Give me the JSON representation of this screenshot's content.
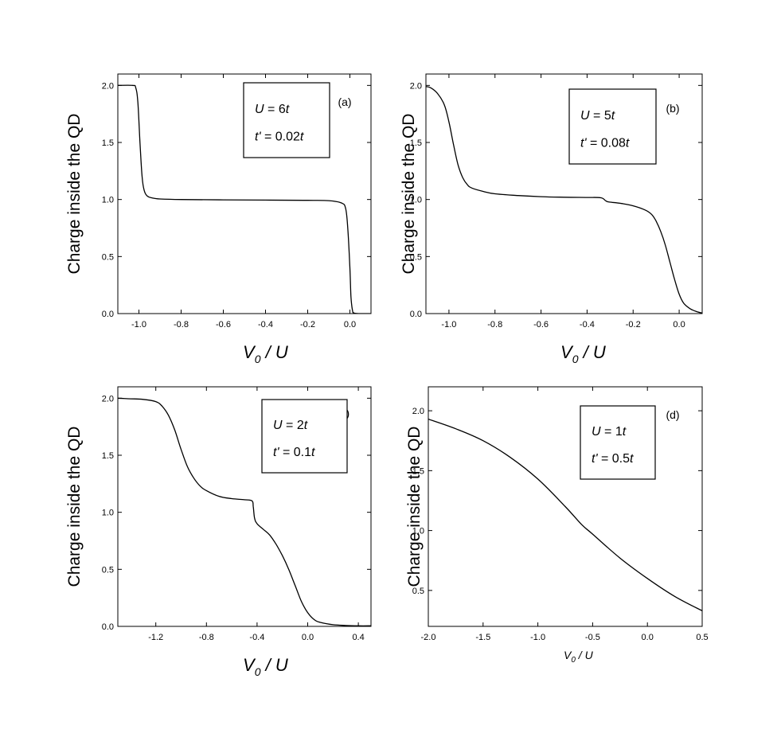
{
  "chart_data": [
    {
      "type": "line",
      "panel_label": "(a)",
      "ylabel": "Charge inside the QD",
      "xlabel": "V0 / U",
      "xlabel_sub": "0",
      "xlim": [
        -1.1,
        0.1
      ],
      "ylim": [
        0.0,
        2.1
      ],
      "xticks": [
        "-1.0",
        "-0.8",
        "-0.6",
        "-0.4",
        "-0.2",
        "0.0"
      ],
      "yticks": [
        "0.0",
        "0.5",
        "1.0",
        "1.5",
        "2.0"
      ],
      "params": [
        "U = 6t",
        "t' = 0.02t"
      ],
      "series": [
        {
          "x": [
            -1.1,
            -1.03,
            -1.015,
            -1.005,
            -0.995,
            -0.985,
            -0.975,
            -0.96,
            -0.94,
            -0.9,
            -0.8,
            -0.6,
            -0.4,
            -0.2,
            -0.1,
            -0.04,
            -0.02,
            -0.01,
            0.0,
            0.005,
            0.012,
            0.02,
            0.05,
            0.1
          ],
          "y": [
            2.0,
            2.0,
            1.98,
            1.85,
            1.5,
            1.2,
            1.08,
            1.03,
            1.015,
            1.005,
            1.0,
            0.997,
            0.995,
            0.993,
            0.99,
            0.97,
            0.92,
            0.75,
            0.4,
            0.15,
            0.03,
            0.005,
            0.0,
            0.0
          ]
        }
      ]
    },
    {
      "type": "line",
      "panel_label": "(b)",
      "ylabel": "Charge inside the QD",
      "xlabel": "V0 / U",
      "xlabel_sub": "0",
      "xlim": [
        -1.1,
        0.1
      ],
      "ylim": [
        0.0,
        2.1
      ],
      "xticks": [
        "-1.0",
        "-0.8",
        "-0.6",
        "-0.4",
        "-0.2",
        "0.0"
      ],
      "yticks": [
        "0.0",
        "0.5",
        "1.0",
        "1.5",
        "2.0"
      ],
      "params": [
        "U = 5t",
        "t' = 0.08t"
      ],
      "series": [
        {
          "x": [
            -1.1,
            -1.08,
            -1.05,
            -1.02,
            -1.0,
            -0.98,
            -0.96,
            -0.94,
            -0.92,
            -0.9,
            -0.85,
            -0.8,
            -0.7,
            -0.6,
            -0.5,
            -0.4,
            -0.34,
            -0.32,
            -0.31,
            -0.29,
            -0.25,
            -0.2,
            -0.15,
            -0.12,
            -0.1,
            -0.08,
            -0.06,
            -0.04,
            -0.02,
            0.0,
            0.02,
            0.05,
            0.08,
            0.1
          ],
          "y": [
            1.99,
            1.98,
            1.93,
            1.83,
            1.68,
            1.48,
            1.3,
            1.19,
            1.13,
            1.1,
            1.07,
            1.05,
            1.035,
            1.025,
            1.02,
            1.018,
            1.015,
            0.99,
            0.98,
            0.975,
            0.965,
            0.945,
            0.91,
            0.87,
            0.81,
            0.72,
            0.6,
            0.45,
            0.3,
            0.17,
            0.09,
            0.04,
            0.015,
            0.005
          ]
        }
      ]
    },
    {
      "type": "line",
      "panel_label": "(c)",
      "ylabel": "Charge inside the QD",
      "xlabel": "V0 / U",
      "xlabel_sub": "0",
      "xlim": [
        -1.5,
        0.5
      ],
      "ylim": [
        0.0,
        2.1
      ],
      "xticks": [
        "-1.2",
        "-0.8",
        "-0.4",
        "0.0",
        "0.4"
      ],
      "xtick_values": [
        -1.2,
        -0.8,
        -0.4,
        0.0,
        0.4
      ],
      "yticks": [
        "0.0",
        "0.5",
        "1.0",
        "1.5",
        "2.0"
      ],
      "params": [
        "U = 2t",
        "t' = 0.1t"
      ],
      "series": [
        {
          "x": [
            -1.5,
            -1.4,
            -1.3,
            -1.2,
            -1.15,
            -1.1,
            -1.05,
            -1.0,
            -0.95,
            -0.9,
            -0.85,
            -0.8,
            -0.7,
            -0.6,
            -0.5,
            -0.44,
            -0.43,
            -0.42,
            -0.4,
            -0.35,
            -0.3,
            -0.25,
            -0.2,
            -0.15,
            -0.1,
            -0.05,
            0.0,
            0.05,
            0.1,
            0.2,
            0.3,
            0.4,
            0.5
          ],
          "y": [
            2.0,
            1.995,
            1.99,
            1.97,
            1.93,
            1.85,
            1.72,
            1.55,
            1.4,
            1.3,
            1.23,
            1.19,
            1.14,
            1.12,
            1.11,
            1.1,
            1.05,
            0.95,
            0.9,
            0.85,
            0.8,
            0.72,
            0.62,
            0.5,
            0.36,
            0.22,
            0.12,
            0.06,
            0.035,
            0.015,
            0.008,
            0.005,
            0.005
          ]
        }
      ]
    },
    {
      "type": "line",
      "panel_label": "(d)",
      "ylabel": "Charge inside the QD",
      "xlabel": "V0 / U",
      "xlabel_sub": "0",
      "xlim": [
        -2.0,
        0.5
      ],
      "ylim": [
        0.2,
        2.2
      ],
      "xticks": [
        "-2.0",
        "-1.5",
        "-1.0",
        "-0.5",
        "0.0",
        "0.5"
      ],
      "yticks": [
        "0.5",
        "1.0",
        "1.5",
        "2.0"
      ],
      "params": [
        "U = 1t",
        "t' = 0.5t"
      ],
      "series": [
        {
          "x": [
            -2.0,
            -1.75,
            -1.5,
            -1.25,
            -1.0,
            -0.75,
            -0.6,
            -0.5,
            -0.25,
            0.0,
            0.25,
            0.5
          ],
          "y": [
            1.93,
            1.85,
            1.75,
            1.61,
            1.43,
            1.2,
            1.05,
            0.97,
            0.77,
            0.6,
            0.45,
            0.33
          ]
        }
      ]
    }
  ]
}
